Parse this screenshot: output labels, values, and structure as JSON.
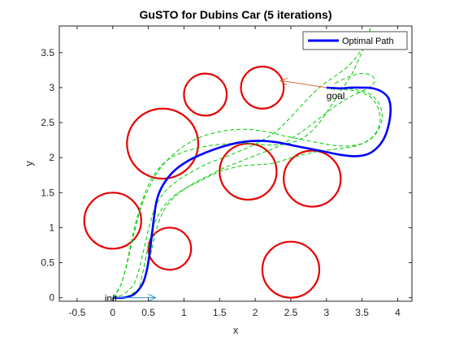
{
  "chart_data": {
    "type": "line",
    "title": "GuSTO for Dubins Car (5 iterations)",
    "xlabel": "x",
    "ylabel": "y",
    "xlim": [
      -0.75,
      4.2
    ],
    "ylim": [
      -0.05,
      3.88
    ],
    "xticks": [
      -0.5,
      0,
      0.5,
      1,
      1.5,
      2,
      2.5,
      3,
      3.5,
      4
    ],
    "xtick_labels": [
      "-0.5",
      "0",
      "0.5",
      "1",
      "1.5",
      "2",
      "2.5",
      "3",
      "3.5",
      "4"
    ],
    "yticks": [
      0,
      0.5,
      1,
      1.5,
      2,
      2.5,
      3,
      3.5
    ],
    "ytick_labels": [
      "0",
      "0.5",
      "1",
      "1.5",
      "2",
      "2.5",
      "3",
      "3.5"
    ],
    "grid": false,
    "legend_position": "top-right",
    "obstacles": [
      {
        "cx": 0.7,
        "cy": 2.2,
        "r": 0.5
      },
      {
        "cx": 1.3,
        "cy": 2.9,
        "r": 0.3
      },
      {
        "cx": 2.1,
        "cy": 3.0,
        "r": 0.3
      },
      {
        "cx": 0.0,
        "cy": 1.1,
        "r": 0.4
      },
      {
        "cx": 0.8,
        "cy": 0.7,
        "r": 0.3
      },
      {
        "cx": 1.9,
        "cy": 1.8,
        "r": 0.4
      },
      {
        "cx": 2.8,
        "cy": 1.7,
        "r": 0.4
      },
      {
        "cx": 2.5,
        "cy": 0.4,
        "r": 0.4
      }
    ],
    "optimal_path": {
      "name": "Optimal Path",
      "color": "#0000ff",
      "x": [
        0.0,
        0.15,
        0.3,
        0.42,
        0.48,
        0.52,
        0.55,
        0.58,
        0.62,
        0.7,
        0.85,
        1.05,
        1.3,
        1.55,
        1.8,
        2.05,
        2.3,
        2.55,
        2.8,
        3.0,
        3.2,
        3.4,
        3.58,
        3.72,
        3.82,
        3.88,
        3.9,
        3.87,
        3.78,
        3.65,
        3.5,
        3.35,
        3.2,
        3.0
      ],
      "y": [
        0.0,
        0.0,
        0.05,
        0.2,
        0.4,
        0.65,
        0.9,
        1.15,
        1.4,
        1.6,
        1.8,
        1.95,
        2.07,
        2.16,
        2.22,
        2.24,
        2.22,
        2.17,
        2.12,
        2.08,
        2.04,
        2.02,
        2.05,
        2.15,
        2.3,
        2.5,
        2.7,
        2.85,
        2.94,
        2.99,
        3.0,
        3.0,
        2.99,
        3.0
      ]
    },
    "iterations": [
      {
        "color": "#00cc00",
        "x": [
          0.0,
          0.12,
          0.2,
          0.26,
          0.33,
          0.42,
          0.52,
          0.65,
          0.82,
          1.05,
          1.35,
          1.65,
          1.95,
          2.2,
          2.45,
          2.7,
          2.9,
          3.05,
          3.2,
          3.35,
          3.45,
          3.55,
          3.62
        ],
        "y": [
          0.0,
          0.2,
          0.5,
          0.8,
          1.1,
          1.4,
          1.65,
          1.85,
          2.0,
          2.1,
          2.17,
          2.2,
          2.2,
          2.18,
          2.2,
          2.3,
          2.5,
          2.72,
          2.95,
          3.18,
          3.4,
          3.62,
          3.85
        ]
      },
      {
        "color": "#00cc00",
        "x": [
          0.0,
          0.2,
          0.35,
          0.42,
          0.48,
          0.55,
          0.65,
          0.8,
          1.0,
          1.25,
          1.5,
          1.8,
          2.05,
          2.25,
          2.45,
          2.7,
          2.95,
          3.2,
          3.45,
          3.65,
          3.75,
          3.72,
          3.6,
          3.4,
          3.25,
          3.05
        ],
        "y": [
          0.0,
          0.0,
          0.1,
          0.35,
          0.65,
          0.95,
          1.2,
          1.4,
          1.55,
          1.68,
          1.8,
          1.88,
          1.9,
          1.92,
          1.98,
          2.05,
          2.1,
          2.13,
          2.18,
          2.3,
          2.5,
          2.72,
          2.88,
          2.95,
          2.97,
          2.98
        ]
      },
      {
        "color": "#00cc00",
        "x": [
          0.0,
          0.1,
          0.18,
          0.25,
          0.32,
          0.4,
          0.5,
          0.62,
          0.78,
          0.98,
          1.2,
          1.45,
          1.7,
          1.95,
          2.2,
          2.45,
          2.7,
          2.95,
          3.15,
          3.35,
          3.55,
          3.7,
          3.78,
          3.75,
          3.62,
          3.42,
          3.2
        ],
        "y": [
          0.0,
          0.15,
          0.4,
          0.7,
          1.0,
          1.3,
          1.55,
          1.78,
          1.98,
          2.15,
          2.28,
          2.36,
          2.4,
          2.4,
          2.36,
          2.3,
          2.25,
          2.2,
          2.17,
          2.17,
          2.22,
          2.35,
          2.55,
          2.75,
          2.9,
          2.97,
          3.0
        ]
      },
      {
        "color": "#00cc00",
        "x": [
          0.0,
          0.15,
          0.3,
          0.38,
          0.45,
          0.52,
          0.6,
          0.72,
          0.88,
          1.08,
          1.3,
          1.55,
          1.8,
          2.05,
          2.3,
          2.5,
          2.7,
          2.9,
          3.1,
          3.3,
          3.45,
          3.55,
          3.6,
          3.62
        ],
        "y": [
          0.0,
          0.05,
          0.2,
          0.45,
          0.75,
          1.05,
          1.3,
          1.5,
          1.65,
          1.78,
          1.9,
          2.0,
          2.1,
          2.22,
          2.38,
          2.58,
          2.8,
          3.0,
          3.15,
          3.3,
          3.48,
          3.65,
          3.78,
          3.88
        ]
      },
      {
        "color": "#00cc00",
        "x": [
          0.0,
          0.2,
          0.38,
          0.48,
          0.55,
          0.62,
          0.72,
          0.88,
          1.08,
          1.3,
          1.55,
          1.8,
          2.05,
          2.3,
          2.55,
          2.8,
          3.05,
          3.3,
          3.5,
          3.62,
          3.68,
          3.62,
          3.48,
          3.3,
          3.1
        ],
        "y": [
          0.0,
          0.02,
          0.15,
          0.4,
          0.7,
          1.0,
          1.25,
          1.45,
          1.6,
          1.72,
          1.85,
          1.95,
          2.05,
          2.15,
          2.3,
          2.48,
          2.68,
          2.85,
          2.95,
          3.02,
          3.1,
          3.18,
          3.2,
          3.15,
          3.05
        ]
      }
    ],
    "annotations": [
      {
        "text": "init",
        "x": 0.0,
        "y": 0.0
      },
      {
        "text": "goal",
        "x": 3.0,
        "y": 3.0
      }
    ],
    "init_arrow": {
      "from": [
        0.0,
        0.0
      ],
      "to": [
        0.6,
        0.0
      ],
      "color": "#2a8fd6"
    },
    "goal_arrow": {
      "from": [
        3.0,
        3.0
      ],
      "to": [
        2.35,
        3.1
      ],
      "color": "#d96a3a"
    }
  },
  "legend": {
    "label": "Optimal Path",
    "color": "#0000ff"
  }
}
